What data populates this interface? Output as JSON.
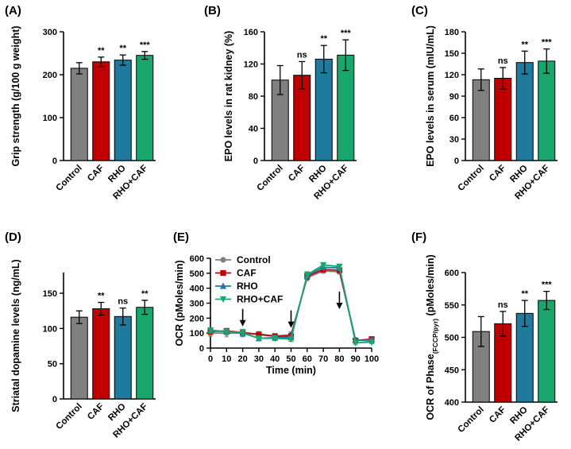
{
  "chart_data": [
    {
      "panel": "A",
      "label": "(A)",
      "type": "bar",
      "ylabel": "Grip strength (g/100 g weight)",
      "categories": [
        "Control",
        "CAF",
        "RHO",
        "RHO+CAF"
      ],
      "values": [
        215,
        230,
        234,
        245
      ],
      "errors": [
        13,
        11,
        12,
        9
      ],
      "significance": [
        "",
        "**",
        "**",
        "***"
      ],
      "ylim": [
        0,
        300
      ],
      "yticks": [
        "0",
        "100",
        "200",
        "300"
      ],
      "colors": [
        "#808080",
        "#c00000",
        "#1f7a9e",
        "#19a66d"
      ]
    },
    {
      "panel": "B",
      "label": "(B)",
      "type": "bar",
      "ylabel": "EPO levels in rat kidney (%)",
      "categories": [
        "Control",
        "CAF",
        "RHO",
        "RHO+CAF"
      ],
      "values": [
        100,
        106,
        126,
        131
      ],
      "errors": [
        18,
        17,
        17,
        19
      ],
      "significance": [
        "",
        "ns",
        "**",
        "***"
      ],
      "ylim": [
        0,
        160
      ],
      "yticks": [
        "0",
        "40",
        "80",
        "120",
        "160"
      ],
      "colors": [
        "#808080",
        "#c00000",
        "#1f7a9e",
        "#19a66d"
      ]
    },
    {
      "panel": "C",
      "label": "(C)",
      "type": "bar",
      "ylabel": "EPO levels in serum (mIU/mL)",
      "categories": [
        "Control",
        "CAF",
        "RHO",
        "RHO+CAF"
      ],
      "values": [
        113,
        115,
        137,
        139
      ],
      "errors": [
        15,
        15,
        16,
        17
      ],
      "significance": [
        "",
        "ns",
        "**",
        "***"
      ],
      "ylim": [
        0,
        180
      ],
      "yticks": [
        "0",
        "30",
        "60",
        "90",
        "120",
        "150",
        "180"
      ],
      "colors": [
        "#808080",
        "#c00000",
        "#1f7a9e",
        "#19a66d"
      ]
    },
    {
      "panel": "D",
      "label": "(D)",
      "type": "bar",
      "ylabel": "Striatal dopamine levels (ng/mL)",
      "categories": [
        "Control",
        "CAF",
        "RHO",
        "RHO+CAF"
      ],
      "values": [
        116,
        128,
        117,
        130
      ],
      "errors": [
        9,
        9,
        12,
        10
      ],
      "significance": [
        "",
        "**",
        "ns",
        "**"
      ],
      "ylim": [
        0,
        180
      ],
      "yticks": [
        "0",
        "50",
        "100",
        "150"
      ],
      "colors": [
        "#808080",
        "#c00000",
        "#1f7a9e",
        "#19a66d"
      ]
    },
    {
      "panel": "E",
      "label": "(E)",
      "type": "line",
      "ylabel": "OCR (pMoles/min)",
      "xlabel": "Time (min)",
      "x": [
        0,
        10,
        20,
        30,
        40,
        50,
        60,
        70,
        80,
        90,
        100
      ],
      "xticks": [
        "0",
        "10",
        "20",
        "30",
        "40",
        "50",
        "60",
        "70",
        "80",
        "90",
        "100"
      ],
      "ylim": [
        0,
        600
      ],
      "yticks": [
        "0",
        "100",
        "200",
        "300",
        "400",
        "500",
        "600"
      ],
      "arrows_at": [
        20,
        50,
        80
      ],
      "legend_position": "top-left",
      "series": [
        {
          "name": "Control",
          "color": "#808080",
          "marker": "circle",
          "values": [
            100,
            100,
            100,
            95,
            80,
            90,
            470,
            515,
            510,
            55,
            45
          ],
          "errors": [
            20,
            25,
            25,
            15,
            15,
            20,
            20,
            15,
            15,
            10,
            10
          ]
        },
        {
          "name": "CAF",
          "color": "#c00000",
          "marker": "square",
          "values": [
            110,
            115,
            105,
            90,
            80,
            80,
            480,
            525,
            520,
            50,
            60
          ],
          "errors": [
            15,
            15,
            20,
            15,
            15,
            15,
            20,
            15,
            15,
            10,
            10
          ]
        },
        {
          "name": "RHO",
          "color": "#1f7a9e",
          "marker": "triangle",
          "values": [
            115,
            110,
            100,
            65,
            70,
            70,
            485,
            540,
            535,
            50,
            55
          ],
          "errors": [
            15,
            15,
            20,
            15,
            15,
            15,
            20,
            15,
            15,
            10,
            10
          ]
        },
        {
          "name": "RHO+CAF",
          "color": "#19a66d",
          "marker": "triangle-down",
          "values": [
            120,
            110,
            105,
            65,
            65,
            60,
            490,
            555,
            545,
            35,
            40
          ],
          "errors": [
            15,
            15,
            20,
            15,
            15,
            15,
            20,
            15,
            15,
            10,
            10
          ]
        }
      ]
    },
    {
      "panel": "F",
      "label": "(F)",
      "type": "bar",
      "ylabel_main": "OCR of Phase",
      "ylabel_sub": "(FCCP/pyr)",
      "ylabel_tail": " (pMoles/min)",
      "categories": [
        "Control",
        "CAF",
        "RHO",
        "RHO+CAF"
      ],
      "values": [
        509,
        521,
        537,
        557
      ],
      "errors": [
        23,
        19,
        20,
        14
      ],
      "significance": [
        "",
        "ns",
        "**",
        "***"
      ],
      "ylim": [
        400,
        600
      ],
      "yticks": [
        "400",
        "450",
        "500",
        "550",
        "600"
      ],
      "colors": [
        "#808080",
        "#c00000",
        "#1f7a9e",
        "#19a66d"
      ]
    }
  ]
}
